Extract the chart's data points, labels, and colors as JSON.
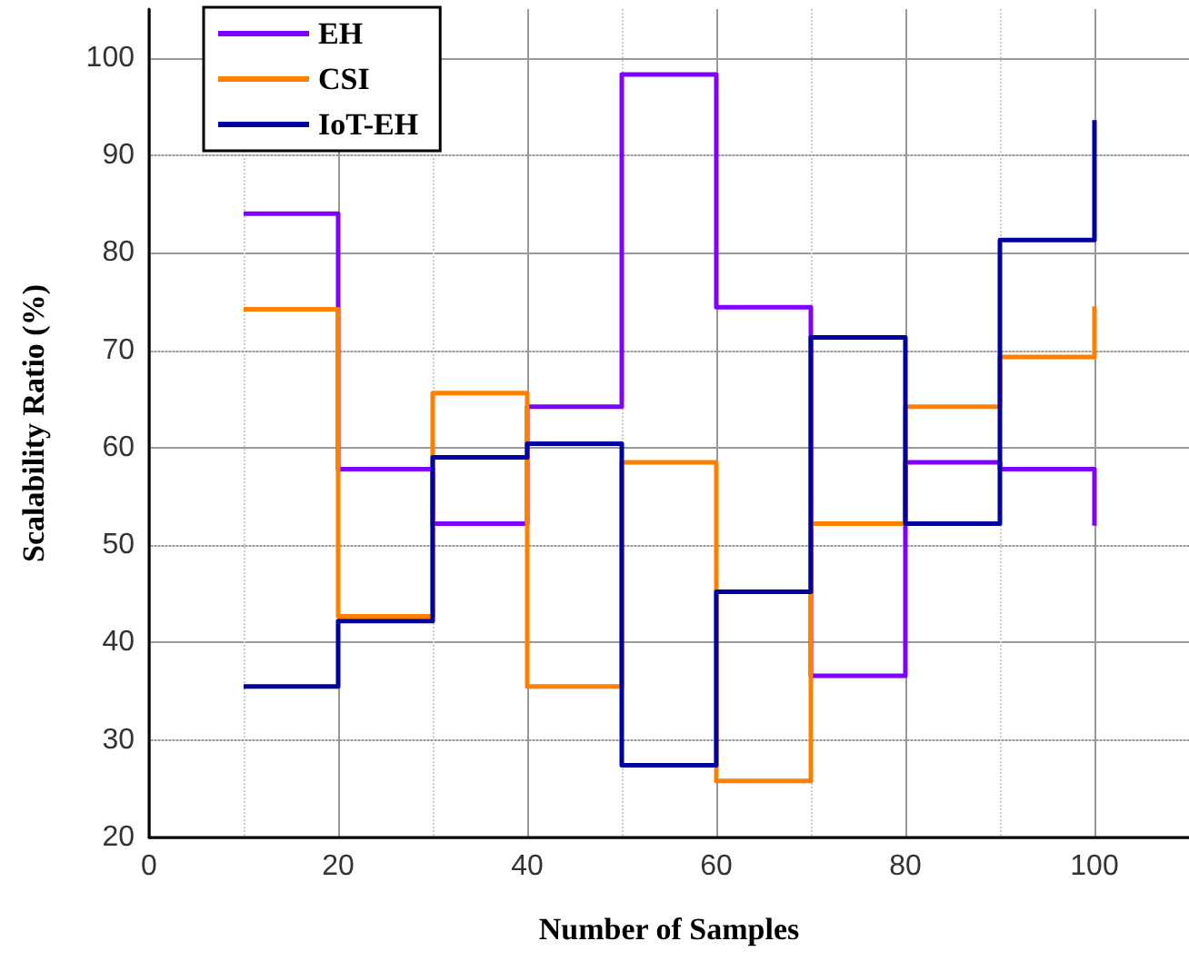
{
  "chart_data": {
    "type": "step",
    "xlabel": "Number of Samples",
    "ylabel": "Scalability Ratio (%)",
    "x": [
      10,
      20,
      30,
      40,
      50,
      60,
      70,
      80,
      90,
      100
    ],
    "series": [
      {
        "name": "EH",
        "color": "#8000ff",
        "values": [
          84,
          57.8,
          52.2,
          64.2,
          98.3,
          74.4,
          36.6,
          58.5,
          57.8,
          52
        ]
      },
      {
        "name": "CSI",
        "color": "#ff8000",
        "values": [
          74.2,
          42.7,
          65.6,
          35.5,
          58.5,
          25.8,
          52.2,
          64.2,
          69.3,
          74.5
        ]
      },
      {
        "name": "IoT-EH",
        "color": "#0000a0",
        "values": [
          35.5,
          42.2,
          59,
          60.4,
          27.4,
          45.2,
          71.3,
          52.2,
          81.3,
          93.6
        ]
      }
    ],
    "xlim": [
      0,
      110
    ],
    "xticks": [
      0,
      20,
      40,
      60,
      80,
      100
    ],
    "ylim": [
      20,
      105
    ],
    "yticks": [
      20,
      30,
      40,
      50,
      60,
      70,
      80,
      90,
      100
    ],
    "grid": true,
    "legend": "top left",
    "marker": "none",
    "line_style": "solid"
  }
}
